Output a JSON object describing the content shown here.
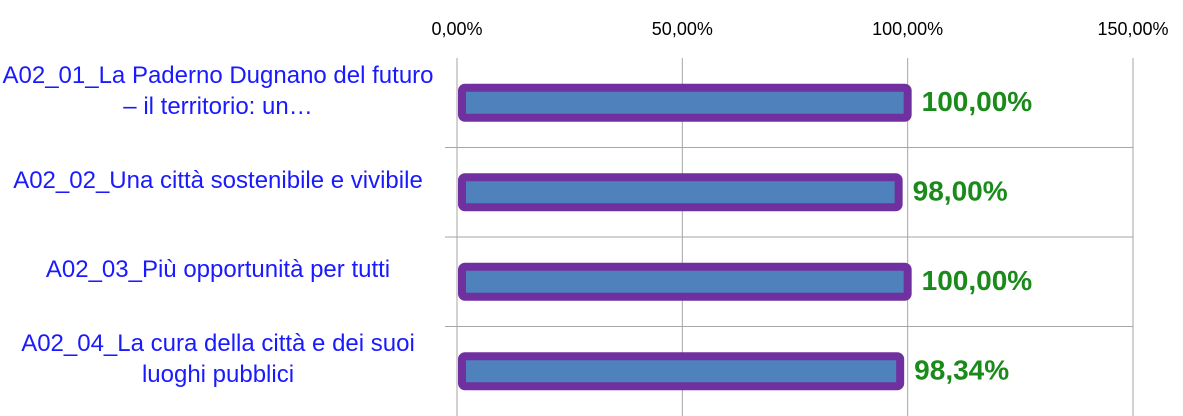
{
  "chart_data": {
    "type": "barh",
    "categories": [
      "A02_01_La Paderno Dugnano del futuro – il territorio: un…",
      "A02_02_Una città sostenibile e vivibile",
      "A02_03_Più opportunità per tutti",
      "A02_04_La cura della città e dei suoi luoghi pubblici"
    ],
    "values": [
      100,
      98,
      100,
      98.34
    ],
    "value_labels": [
      "100,00%",
      "98,00%",
      "100,00%",
      "98,34%"
    ],
    "color": "#4f81bd",
    "edgecolor": "#7030a0",
    "xlim": [
      0,
      150
    ],
    "xticks": [
      {
        "value": 0,
        "label": "0,00%"
      },
      {
        "value": 50,
        "label": "50,00%"
      },
      {
        "value": 100,
        "label": "100,00%"
      },
      {
        "value": 150,
        "label": "150,00%"
      }
    ],
    "grid": true
  }
}
